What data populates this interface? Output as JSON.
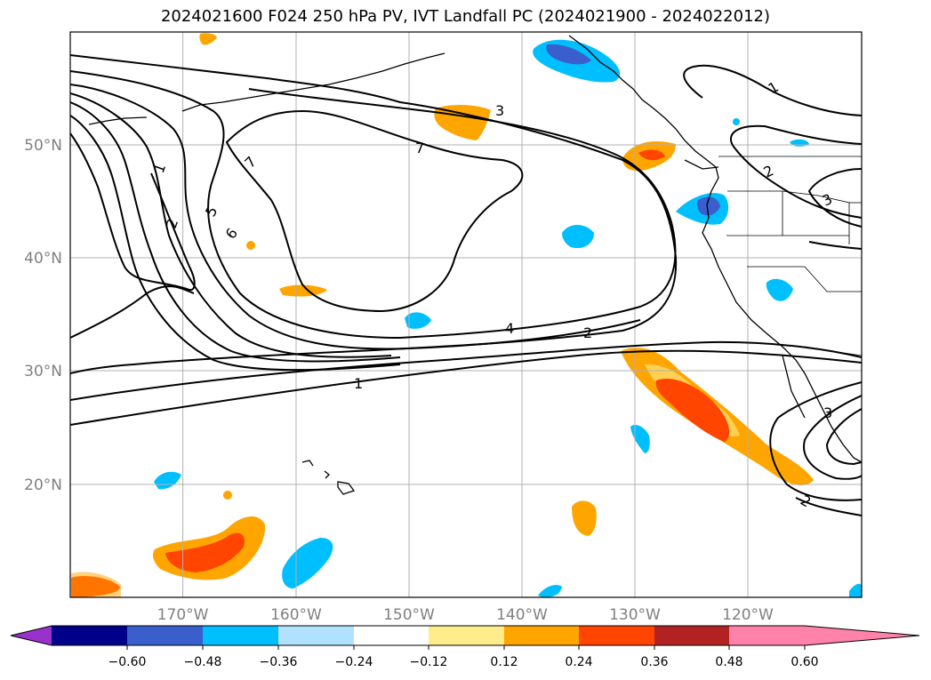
{
  "title": "2024021600 F024 250 hPa PV, IVT Landfall PC (2024021900 - 2024022012)",
  "lat_ticks": [
    "50°N",
    "40°N",
    "30°N",
    "20°N"
  ],
  "lon_ticks": [
    "170°W",
    "160°W",
    "150°W",
    "140°W",
    "130°W",
    "120°W"
  ],
  "colorbar": {
    "colors": [
      "#9932cc",
      "#00008b",
      "#3a5fcd",
      "#00bfff",
      "#b0e2ff",
      "#ffffff",
      "#ffec8b",
      "#ffa500",
      "#ff4500",
      "#b22222",
      "#ff82ab"
    ],
    "tick_labels": [
      "−0.60",
      "−0.48",
      "−0.36",
      "−0.24",
      "−0.12",
      "0.12",
      "0.24",
      "0.36",
      "0.48",
      "0.60"
    ]
  },
  "contour_labels": [
    "1",
    "2",
    "5",
    "6",
    "7",
    "3",
    "7",
    "4",
    "2",
    "1",
    "1",
    "2",
    "3",
    "3",
    "2"
  ]
}
